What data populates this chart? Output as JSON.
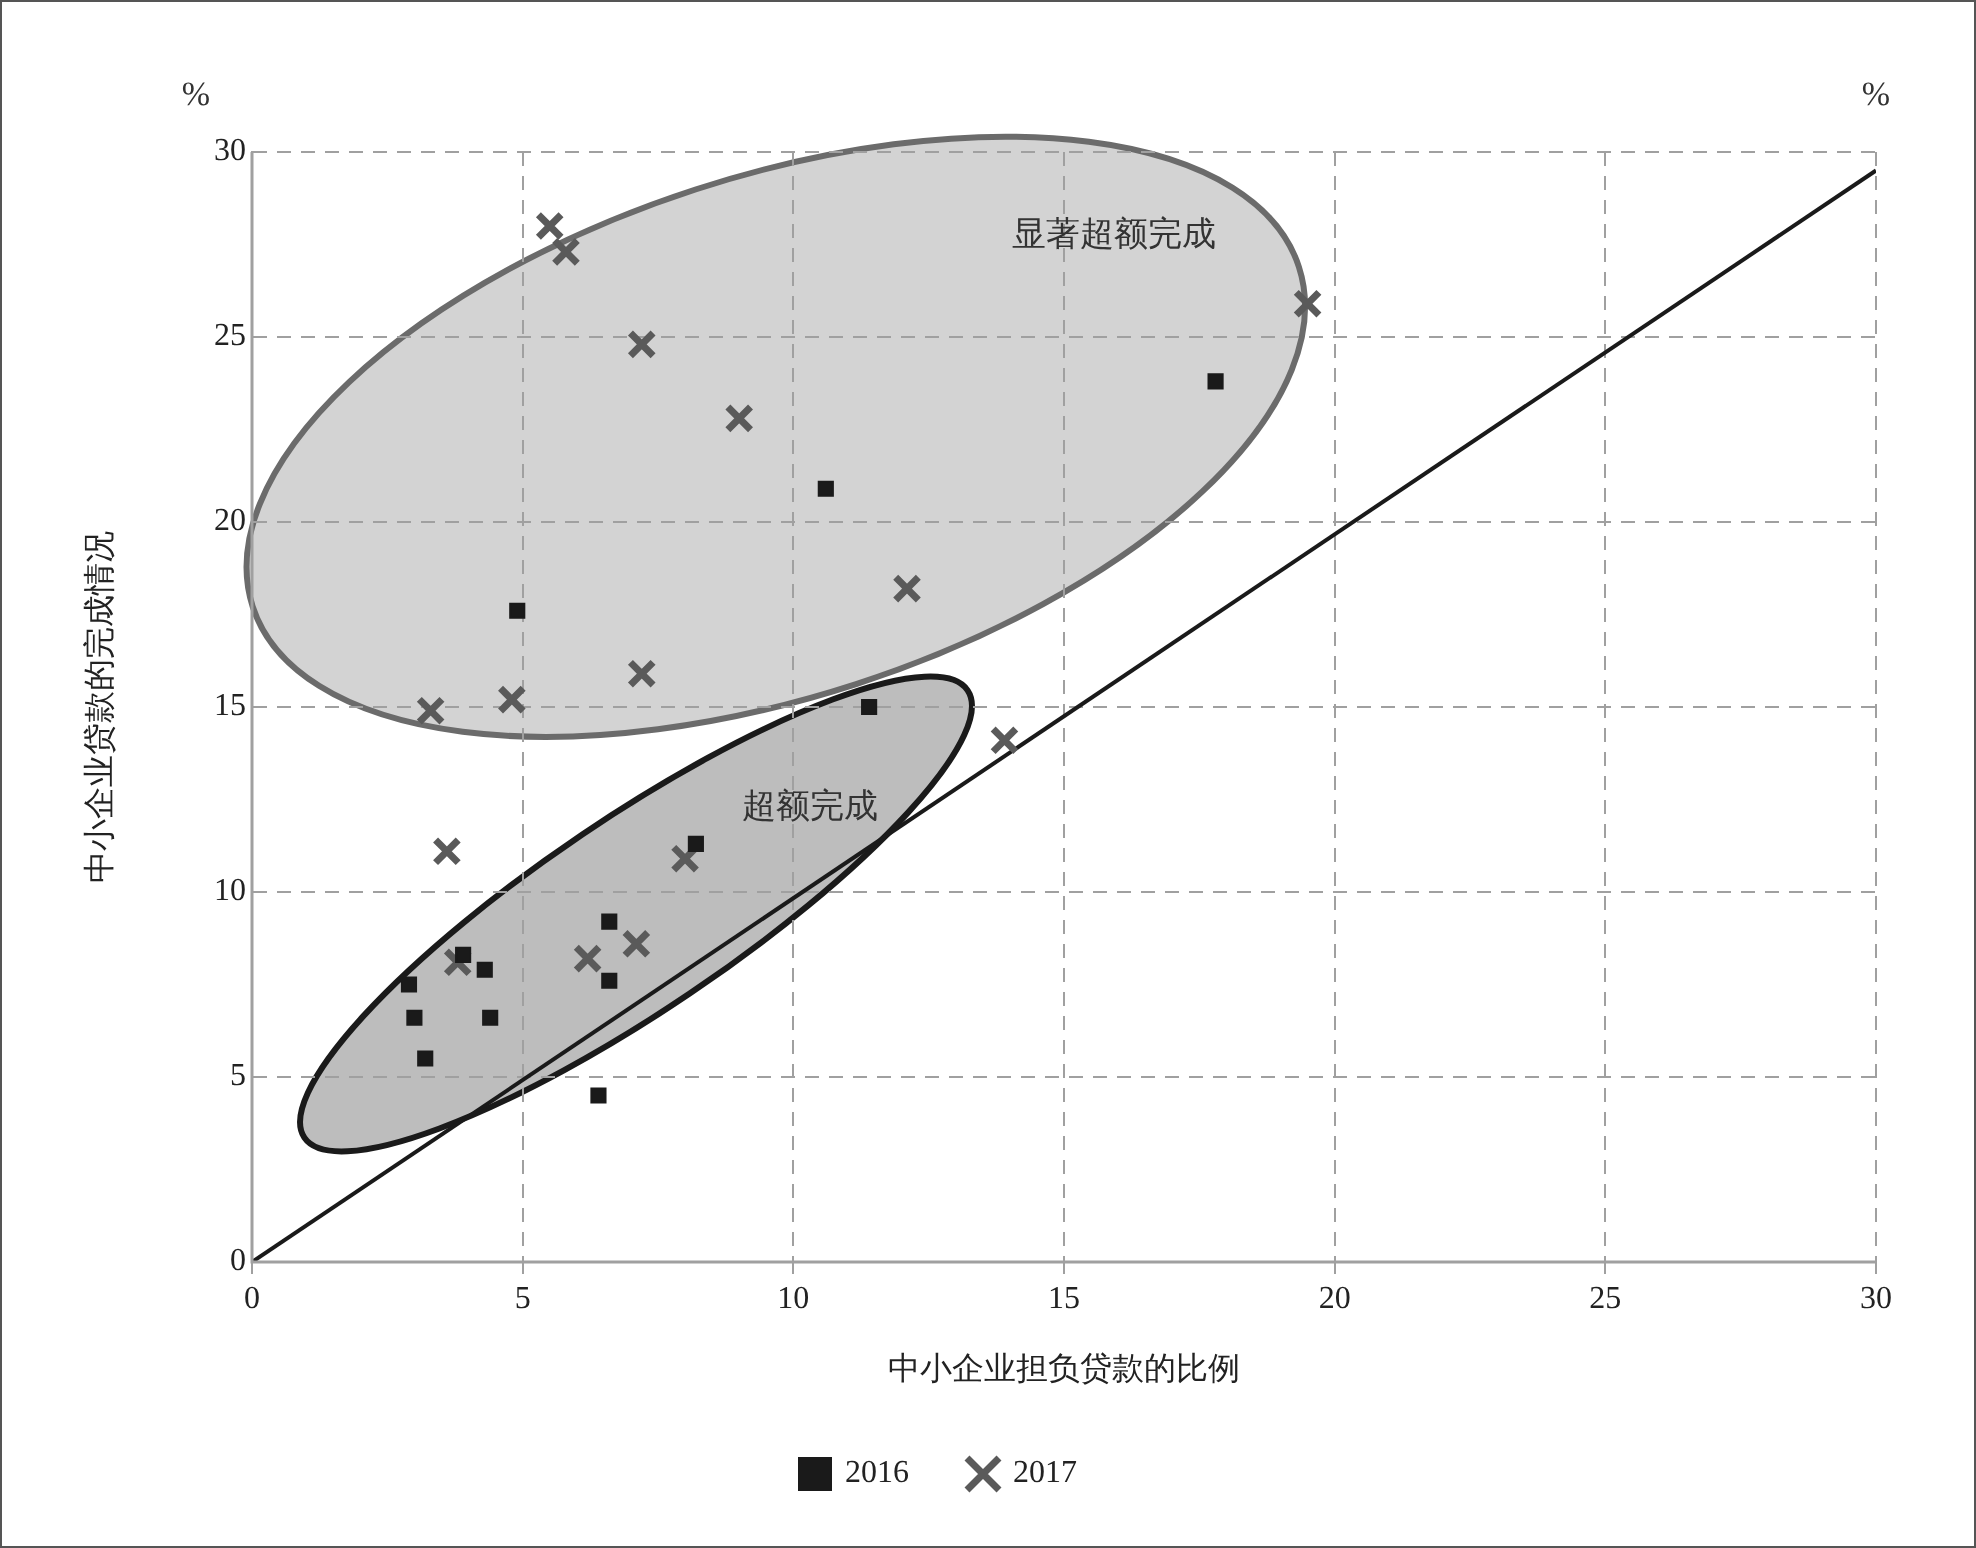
{
  "chart_data": {
    "type": "scatter",
    "xlabel": "中小企业担负贷款的比例",
    "ylabel": "中小企业贷款的完成情况",
    "xlim": [
      0,
      30
    ],
    "xticks": [
      0,
      5,
      10,
      15,
      20,
      25,
      30
    ],
    "ylim": [
      0,
      30
    ],
    "yticks": [
      0,
      5,
      10,
      15,
      20,
      25,
      30
    ],
    "grid": true,
    "legend": "bottom",
    "annotations": [
      "%",
      "%",
      "显著超额完成",
      "超额完成"
    ],
    "series": [
      {
        "name": "2016",
        "color": "#1a1a1a",
        "marker": "square",
        "x": [
          2.9,
          3.0,
          3.2,
          3.9,
          4.3,
          4.4,
          6.6,
          6.6,
          6.4,
          8.2,
          11.4,
          4.9,
          10.6,
          17.8
        ],
        "values": [
          7.5,
          6.6,
          5.5,
          8.3,
          7.9,
          6.6,
          9.2,
          7.6,
          4.5,
          11.3,
          15.0,
          17.6,
          20.9,
          23.8
        ]
      },
      {
        "name": "2017",
        "color": "#5a5a5a",
        "marker": "cross",
        "x": [
          5.5,
          5.8,
          7.2,
          9.0,
          12.1,
          7.2,
          4.8,
          3.3,
          19.5,
          13.9,
          3.6,
          3.8,
          6.2,
          7.1,
          8.0
        ],
        "values": [
          28.0,
          27.3,
          24.8,
          22.8,
          18.2,
          15.9,
          15.2,
          14.9,
          25.9,
          14.1,
          11.1,
          8.1,
          8.2,
          8.6,
          10.9
        ]
      },
      {
        "type": "line",
        "color": "#1a1a1a",
        "marker": "none",
        "x": [
          0,
          30
        ],
        "values": [
          0,
          29.5
        ]
      }
    ]
  }
}
